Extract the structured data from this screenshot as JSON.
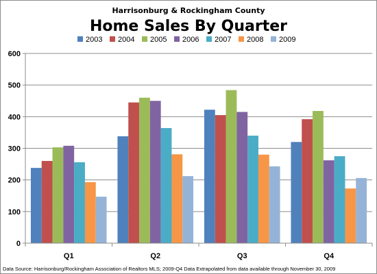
{
  "chart_data": {
    "type": "bar",
    "subtitle": "Harrisonburg & Rockingham  County",
    "title": "Home Sales By Quarter",
    "categories": [
      "Q1",
      "Q2",
      "Q3",
      "Q4"
    ],
    "series": [
      {
        "name": "2003",
        "color": "#4f81bd",
        "values": [
          238,
          338,
          422,
          320
        ]
      },
      {
        "name": "2004",
        "color": "#c0504d",
        "values": [
          260,
          445,
          405,
          392
        ]
      },
      {
        "name": "2005",
        "color": "#9bbb59",
        "values": [
          303,
          460,
          484,
          418
        ]
      },
      {
        "name": "2006",
        "color": "#8064a2",
        "values": [
          308,
          450,
          415,
          262
        ]
      },
      {
        "name": "2007",
        "color": "#4bacc6",
        "values": [
          256,
          364,
          340,
          275
        ]
      },
      {
        "name": "2008",
        "color": "#f79646",
        "values": [
          193,
          281,
          280,
          173
        ]
      },
      {
        "name": "2009",
        "color": "#95b3d7",
        "values": [
          147,
          212,
          243,
          206
        ]
      }
    ],
    "ylim": [
      0,
      600
    ],
    "yticks": [
      "0",
      "100",
      "200",
      "300",
      "400",
      "500",
      "600"
    ],
    "grid": true,
    "legend": "top",
    "footnote": "Data Source:  Harrisonburg/Rockingham  Association of Realtors MLS; 2009-Q4 Data Extrapolated  from data available through November 30, 2009"
  }
}
